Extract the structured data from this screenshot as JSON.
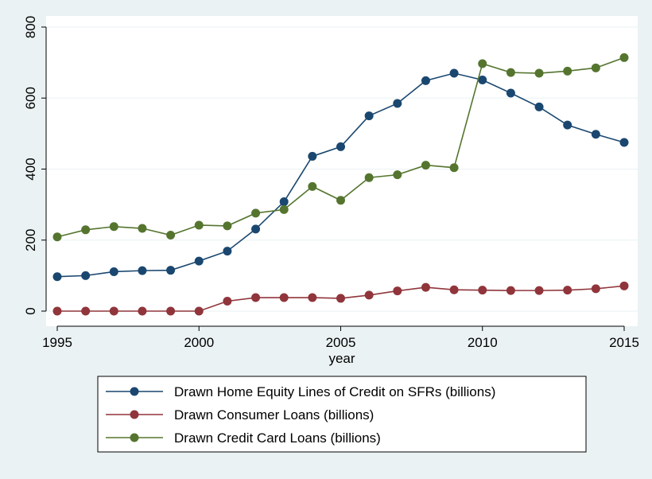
{
  "chart_data": {
    "type": "line",
    "title": "",
    "xlabel": "year",
    "ylabel": "",
    "xlim": [
      1995,
      2015
    ],
    "ylim": [
      0,
      800
    ],
    "x_ticks": [
      1995,
      2000,
      2005,
      2010,
      2015
    ],
    "y_ticks": [
      0,
      200,
      400,
      600,
      800
    ],
    "grid": true,
    "legend_position": "bottom",
    "x": [
      1995,
      1996,
      1997,
      1998,
      1999,
      2000,
      2001,
      2002,
      2003,
      2004,
      2005,
      2006,
      2007,
      2008,
      2009,
      2010,
      2011,
      2012,
      2013,
      2014,
      2015
    ],
    "series": [
      {
        "name": "Drawn Home Equity Lines of Credit on SFRs (billions)",
        "color": "#1a476f",
        "values": [
          97,
          100,
          111,
          114,
          115,
          141,
          169,
          231,
          308,
          436,
          463,
          550,
          585,
          649,
          670,
          651,
          614,
          575,
          524,
          498,
          475
        ]
      },
      {
        "name": "Drawn Consumer Loans (billions)",
        "color": "#90353b",
        "values": [
          0,
          0,
          0,
          0,
          0,
          0,
          28,
          38,
          38,
          38,
          36,
          45,
          57,
          67,
          60,
          59,
          58,
          58,
          59,
          63,
          71
        ]
      },
      {
        "name": "Drawn Credit Card Loans (billions)",
        "color": "#55752f",
        "values": [
          209,
          229,
          238,
          233,
          214,
          242,
          240,
          276,
          286,
          351,
          312,
          376,
          384,
          411,
          404,
          697,
          672,
          670,
          676,
          685,
          714
        ]
      }
    ]
  }
}
